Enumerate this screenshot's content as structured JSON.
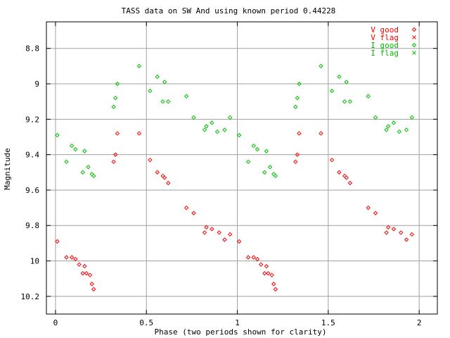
{
  "chart_data": {
    "type": "scatter",
    "title": "TASS data on SW And  using known period 0.44228",
    "xlabel": "Phase (two periods shown for clarity)",
    "ylabel": "Magnitude",
    "xlim": [
      -0.05,
      2.1
    ],
    "ylim": [
      10.3,
      8.65
    ],
    "y_inverted": true,
    "grid": true,
    "legend_position": "top-right",
    "x_ticks": [
      0,
      0.5,
      1,
      1.5,
      2
    ],
    "x_tick_labels": [
      "0",
      "0.5",
      "1",
      "1.5",
      "2"
    ],
    "y_ticks": [
      8.8,
      9,
      9.2,
      9.4,
      9.6,
      9.8,
      10,
      10.2
    ],
    "y_tick_labels": [
      "8.8",
      "9",
      "9.2",
      "9.4",
      "9.6",
      "9.8",
      "10",
      "10.2"
    ],
    "series": [
      {
        "name": "V good",
        "color": "#ff0000",
        "marker": "diamond",
        "points": [
          [
            0.01,
            9.89
          ],
          [
            0.06,
            9.98
          ],
          [
            0.09,
            9.98
          ],
          [
            0.11,
            9.99
          ],
          [
            0.13,
            10.02
          ],
          [
            0.15,
            10.07
          ],
          [
            0.16,
            10.03
          ],
          [
            0.17,
            10.07
          ],
          [
            0.19,
            10.08
          ],
          [
            0.2,
            10.13
          ],
          [
            0.21,
            10.16
          ],
          [
            0.32,
            9.44
          ],
          [
            0.33,
            9.4
          ],
          [
            0.34,
            9.28
          ],
          [
            0.46,
            9.28
          ],
          [
            0.52,
            9.43
          ],
          [
            0.56,
            9.5
          ],
          [
            0.59,
            9.52
          ],
          [
            0.6,
            9.53
          ],
          [
            0.62,
            9.56
          ],
          [
            0.72,
            9.7
          ],
          [
            0.76,
            9.73
          ],
          [
            0.82,
            9.84
          ],
          [
            0.83,
            9.81
          ],
          [
            0.86,
            9.82
          ],
          [
            0.9,
            9.84
          ],
          [
            0.93,
            9.88
          ],
          [
            0.96,
            9.85
          ],
          [
            1.01,
            9.89
          ],
          [
            1.06,
            9.98
          ],
          [
            1.09,
            9.98
          ],
          [
            1.11,
            9.99
          ],
          [
            1.13,
            10.02
          ],
          [
            1.15,
            10.07
          ],
          [
            1.16,
            10.03
          ],
          [
            1.17,
            10.07
          ],
          [
            1.19,
            10.08
          ],
          [
            1.2,
            10.13
          ],
          [
            1.21,
            10.16
          ],
          [
            1.32,
            9.44
          ],
          [
            1.33,
            9.4
          ],
          [
            1.34,
            9.28
          ],
          [
            1.46,
            9.28
          ],
          [
            1.52,
            9.43
          ],
          [
            1.56,
            9.5
          ],
          [
            1.59,
            9.52
          ],
          [
            1.6,
            9.53
          ],
          [
            1.62,
            9.56
          ],
          [
            1.72,
            9.7
          ],
          [
            1.76,
            9.73
          ],
          [
            1.82,
            9.84
          ],
          [
            1.83,
            9.81
          ],
          [
            1.86,
            9.82
          ],
          [
            1.9,
            9.84
          ],
          [
            1.93,
            9.88
          ],
          [
            1.96,
            9.85
          ]
        ]
      },
      {
        "name": "V flag",
        "color": "#ff0000",
        "marker": "cross",
        "points": []
      },
      {
        "name": "I good",
        "color": "#00c000",
        "marker": "diamond",
        "points": [
          [
            0.01,
            9.29
          ],
          [
            0.06,
            9.44
          ],
          [
            0.09,
            9.35
          ],
          [
            0.11,
            9.37
          ],
          [
            0.15,
            9.5
          ],
          [
            0.16,
            9.38
          ],
          [
            0.18,
            9.47
          ],
          [
            0.2,
            9.51
          ],
          [
            0.21,
            9.52
          ],
          [
            0.32,
            9.13
          ],
          [
            0.33,
            9.08
          ],
          [
            0.34,
            9.0
          ],
          [
            0.46,
            8.9
          ],
          [
            0.52,
            9.04
          ],
          [
            0.56,
            8.96
          ],
          [
            0.59,
            9.1
          ],
          [
            0.6,
            8.99
          ],
          [
            0.62,
            9.1
          ],
          [
            0.72,
            9.07
          ],
          [
            0.76,
            9.19
          ],
          [
            0.82,
            9.26
          ],
          [
            0.83,
            9.24
          ],
          [
            0.86,
            9.22
          ],
          [
            0.89,
            9.27
          ],
          [
            0.93,
            9.26
          ],
          [
            0.96,
            9.19
          ],
          [
            1.01,
            9.29
          ],
          [
            1.06,
            9.44
          ],
          [
            1.09,
            9.35
          ],
          [
            1.11,
            9.37
          ],
          [
            1.15,
            9.5
          ],
          [
            1.16,
            9.38
          ],
          [
            1.18,
            9.47
          ],
          [
            1.2,
            9.51
          ],
          [
            1.21,
            9.52
          ],
          [
            1.32,
            9.13
          ],
          [
            1.33,
            9.08
          ],
          [
            1.34,
            9.0
          ],
          [
            1.46,
            8.9
          ],
          [
            1.52,
            9.04
          ],
          [
            1.56,
            8.96
          ],
          [
            1.59,
            9.1
          ],
          [
            1.6,
            8.99
          ],
          [
            1.62,
            9.1
          ],
          [
            1.72,
            9.07
          ],
          [
            1.76,
            9.19
          ],
          [
            1.82,
            9.26
          ],
          [
            1.83,
            9.24
          ],
          [
            1.86,
            9.22
          ],
          [
            1.89,
            9.27
          ],
          [
            1.93,
            9.26
          ],
          [
            1.96,
            9.19
          ]
        ]
      },
      {
        "name": "I flag",
        "color": "#00c000",
        "marker": "cross",
        "points": []
      }
    ]
  }
}
